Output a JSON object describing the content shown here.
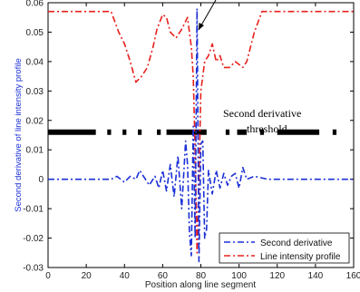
{
  "chart_data": {
    "type": "line",
    "title": "",
    "xlabel": "Position along line segment",
    "ylabel": "Second derivative of line intensity profile",
    "xlim": [
      0,
      160
    ],
    "ylim": [
      -0.03,
      0.06
    ],
    "x_ticks": [
      0,
      20,
      40,
      60,
      80,
      100,
      120,
      140,
      160
    ],
    "y_ticks": [
      -0.03,
      -0.02,
      -0.01,
      0,
      0.01,
      0.02,
      0.03,
      0.04,
      0.05,
      0.06
    ],
    "x_tick_labels": [
      "0",
      "20",
      "40",
      "60",
      "80",
      "100",
      "120",
      "140",
      "160"
    ],
    "y_tick_labels": [
      "-0.03",
      "-0.02",
      "-0.01",
      "0",
      "0.01",
      "0.02",
      "0.03",
      "0.04",
      "0.05",
      "0.06"
    ],
    "grid": false,
    "legend_position": "bottom-right",
    "threshold": {
      "label": "Second derivative threshold",
      "label_lines": [
        "Second derivative",
        "threshold"
      ],
      "value": 0.016,
      "color": "#000000",
      "segments": [
        [
          0,
          25
        ],
        [
          31,
          33
        ],
        [
          39,
          41
        ],
        [
          47,
          49
        ],
        [
          57,
          59
        ],
        [
          62,
          83
        ],
        [
          93,
          95
        ],
        [
          99,
          104
        ],
        [
          111,
          113
        ],
        [
          120,
          142
        ],
        [
          149,
          151
        ]
      ]
    },
    "series": [
      {
        "name": "Second derivative",
        "color": "#1a2fd6",
        "style": "dashdot",
        "x": [
          0,
          20,
          28,
          33,
          36,
          40,
          43,
          46,
          48,
          50,
          53,
          56,
          58,
          60,
          62,
          64,
          66,
          68,
          70,
          72,
          73,
          74,
          75,
          76,
          77,
          78,
          79,
          80,
          81,
          82,
          83,
          84,
          86,
          88,
          90,
          92,
          94,
          96,
          98,
          100,
          102,
          104,
          108,
          115,
          120,
          140,
          160
        ],
        "y": [
          0.0,
          0.0,
          0.0,
          0.0,
          0.001,
          -0.001,
          0.001,
          0.0,
          0.003,
          0.001,
          -0.002,
          0.001,
          -0.003,
          0.003,
          -0.004,
          0.005,
          -0.006,
          0.008,
          -0.01,
          0.013,
          0.005,
          -0.018,
          -0.026,
          0.018,
          -0.02,
          0.058,
          -0.028,
          0.012,
          0.013,
          -0.02,
          -0.017,
          0.003,
          -0.005,
          0.003,
          -0.003,
          0.002,
          -0.002,
          0.001,
          0.002,
          -0.003,
          0.004,
          0.0,
          0.001,
          0.0,
          0.0,
          0.0,
          0.0
        ]
      },
      {
        "name": "Line intensity profile",
        "color": "#e8201c",
        "style": "dashdot",
        "x": [
          0,
          20,
          28,
          33,
          37,
          40,
          43,
          46,
          49,
          52,
          55,
          57,
          60,
          62,
          64,
          67,
          70,
          73,
          75,
          76,
          77,
          78,
          79,
          80,
          81,
          82,
          84,
          86,
          88,
          90,
          92,
          95,
          98,
          102,
          104,
          106,
          108,
          112,
          116,
          120,
          140,
          160
        ],
        "y": [
          0.057,
          0.057,
          0.057,
          0.057,
          0.05,
          0.046,
          0.04,
          0.033,
          0.035,
          0.038,
          0.045,
          0.051,
          0.056,
          0.055,
          0.05,
          0.048,
          0.051,
          0.055,
          0.045,
          0.035,
          0.01,
          -0.025,
          0.0,
          0.03,
          0.035,
          0.04,
          0.042,
          0.046,
          0.04,
          0.042,
          0.038,
          0.038,
          0.04,
          0.038,
          0.04,
          0.045,
          0.05,
          0.057,
          0.057,
          0.057,
          0.057,
          0.057
        ]
      }
    ],
    "annotations": [
      {
        "type": "arrow",
        "x": 78,
        "y": 0.058,
        "direction": "down-left"
      }
    ]
  }
}
